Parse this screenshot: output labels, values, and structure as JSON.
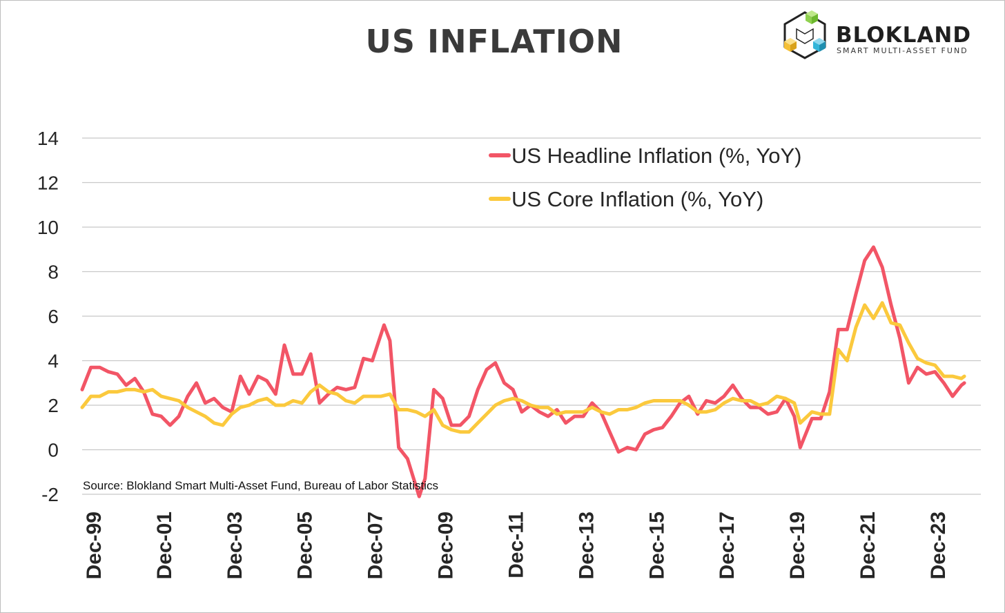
{
  "chart_data": {
    "type": "line",
    "title": "US INFLATION",
    "xlabel": "",
    "ylabel": "",
    "ylim": [
      -2,
      14
    ],
    "yticks": [
      -2,
      0,
      2,
      4,
      6,
      8,
      10,
      12,
      14
    ],
    "xtick_labels": [
      "Dec-99",
      "Dec-01",
      "Dec-03",
      "Dec-05",
      "Dec-07",
      "Dec-09",
      "Dec-11",
      "Dec-13",
      "Dec-15",
      "Dec-17",
      "Dec-19",
      "Dec-21",
      "Dec-23"
    ],
    "grid": "horizontal",
    "legend_position": "top-right",
    "source": "Source: Blokland Smart Multi-Asset Fund, Bureau of Labor Statistics",
    "series": [
      {
        "name": "US Headline Inflation (%, YoY)",
        "color": "#f25566",
        "points": [
          [
            "1999-12",
            2.7
          ],
          [
            "2000-03",
            3.7
          ],
          [
            "2000-06",
            3.7
          ],
          [
            "2000-09",
            3.5
          ],
          [
            "2000-12",
            3.4
          ],
          [
            "2001-03",
            2.9
          ],
          [
            "2001-06",
            3.2
          ],
          [
            "2001-09",
            2.6
          ],
          [
            "2001-12",
            1.6
          ],
          [
            "2002-03",
            1.5
          ],
          [
            "2002-06",
            1.1
          ],
          [
            "2002-09",
            1.5
          ],
          [
            "2002-12",
            2.4
          ],
          [
            "2003-03",
            3.0
          ],
          [
            "2003-06",
            2.1
          ],
          [
            "2003-09",
            2.3
          ],
          [
            "2003-12",
            1.9
          ],
          [
            "2004-03",
            1.7
          ],
          [
            "2004-06",
            3.3
          ],
          [
            "2004-09",
            2.5
          ],
          [
            "2004-12",
            3.3
          ],
          [
            "2005-03",
            3.1
          ],
          [
            "2005-06",
            2.5
          ],
          [
            "2005-09",
            4.7
          ],
          [
            "2005-12",
            3.4
          ],
          [
            "2006-03",
            3.4
          ],
          [
            "2006-06",
            4.3
          ],
          [
            "2006-09",
            2.1
          ],
          [
            "2006-12",
            2.5
          ],
          [
            "2007-03",
            2.8
          ],
          [
            "2007-06",
            2.7
          ],
          [
            "2007-09",
            2.8
          ],
          [
            "2007-12",
            4.1
          ],
          [
            "2008-03",
            4.0
          ],
          [
            "2008-07",
            5.6
          ],
          [
            "2008-09",
            4.9
          ],
          [
            "2008-12",
            0.1
          ],
          [
            "2009-03",
            -0.4
          ],
          [
            "2009-07",
            -2.1
          ],
          [
            "2009-09",
            -1.3
          ],
          [
            "2009-12",
            2.7
          ],
          [
            "2010-03",
            2.3
          ],
          [
            "2010-06",
            1.1
          ],
          [
            "2010-09",
            1.1
          ],
          [
            "2010-12",
            1.5
          ],
          [
            "2011-03",
            2.7
          ],
          [
            "2011-06",
            3.6
          ],
          [
            "2011-09",
            3.9
          ],
          [
            "2011-12",
            3.0
          ],
          [
            "2012-03",
            2.7
          ],
          [
            "2012-06",
            1.7
          ],
          [
            "2012-09",
            2.0
          ],
          [
            "2012-12",
            1.7
          ],
          [
            "2013-03",
            1.5
          ],
          [
            "2013-06",
            1.8
          ],
          [
            "2013-09",
            1.2
          ],
          [
            "2013-12",
            1.5
          ],
          [
            "2014-03",
            1.5
          ],
          [
            "2014-06",
            2.1
          ],
          [
            "2014-09",
            1.7
          ],
          [
            "2014-12",
            0.8
          ],
          [
            "2015-03",
            -0.1
          ],
          [
            "2015-06",
            0.1
          ],
          [
            "2015-09",
            0.0
          ],
          [
            "2015-12",
            0.7
          ],
          [
            "2016-03",
            0.9
          ],
          [
            "2016-06",
            1.0
          ],
          [
            "2016-09",
            1.5
          ],
          [
            "2016-12",
            2.1
          ],
          [
            "2017-03",
            2.4
          ],
          [
            "2017-06",
            1.6
          ],
          [
            "2017-09",
            2.2
          ],
          [
            "2017-12",
            2.1
          ],
          [
            "2018-03",
            2.4
          ],
          [
            "2018-06",
            2.9
          ],
          [
            "2018-09",
            2.3
          ],
          [
            "2018-12",
            1.9
          ],
          [
            "2019-03",
            1.9
          ],
          [
            "2019-06",
            1.6
          ],
          [
            "2019-09",
            1.7
          ],
          [
            "2019-12",
            2.3
          ],
          [
            "2020-03",
            1.5
          ],
          [
            "2020-05",
            0.1
          ],
          [
            "2020-09",
            1.4
          ],
          [
            "2020-12",
            1.4
          ],
          [
            "2021-03",
            2.6
          ],
          [
            "2021-06",
            5.4
          ],
          [
            "2021-09",
            5.4
          ],
          [
            "2021-12",
            7.0
          ],
          [
            "2022-03",
            8.5
          ],
          [
            "2022-06",
            9.1
          ],
          [
            "2022-09",
            8.2
          ],
          [
            "2022-12",
            6.5
          ],
          [
            "2023-03",
            5.0
          ],
          [
            "2023-06",
            3.0
          ],
          [
            "2023-09",
            3.7
          ],
          [
            "2023-12",
            3.4
          ],
          [
            "2024-03",
            3.5
          ],
          [
            "2024-06",
            3.0
          ],
          [
            "2024-09",
            2.4
          ],
          [
            "2024-12",
            2.9
          ],
          [
            "2025-01",
            3.0
          ]
        ]
      },
      {
        "name": "US Core Inflation (%, YoY)",
        "color": "#fbc93d",
        "points": [
          [
            "1999-12",
            1.9
          ],
          [
            "2000-03",
            2.4
          ],
          [
            "2000-06",
            2.4
          ],
          [
            "2000-09",
            2.6
          ],
          [
            "2000-12",
            2.6
          ],
          [
            "2001-03",
            2.7
          ],
          [
            "2001-06",
            2.7
          ],
          [
            "2001-09",
            2.6
          ],
          [
            "2001-12",
            2.7
          ],
          [
            "2002-03",
            2.4
          ],
          [
            "2002-06",
            2.3
          ],
          [
            "2002-09",
            2.2
          ],
          [
            "2002-12",
            1.9
          ],
          [
            "2003-03",
            1.7
          ],
          [
            "2003-06",
            1.5
          ],
          [
            "2003-09",
            1.2
          ],
          [
            "2003-12",
            1.1
          ],
          [
            "2004-03",
            1.6
          ],
          [
            "2004-06",
            1.9
          ],
          [
            "2004-09",
            2.0
          ],
          [
            "2004-12",
            2.2
          ],
          [
            "2005-03",
            2.3
          ],
          [
            "2005-06",
            2.0
          ],
          [
            "2005-09",
            2.0
          ],
          [
            "2005-12",
            2.2
          ],
          [
            "2006-03",
            2.1
          ],
          [
            "2006-06",
            2.6
          ],
          [
            "2006-09",
            2.9
          ],
          [
            "2006-12",
            2.6
          ],
          [
            "2007-03",
            2.5
          ],
          [
            "2007-06",
            2.2
          ],
          [
            "2007-09",
            2.1
          ],
          [
            "2007-12",
            2.4
          ],
          [
            "2008-03",
            2.4
          ],
          [
            "2008-06",
            2.4
          ],
          [
            "2008-09",
            2.5
          ],
          [
            "2008-12",
            1.8
          ],
          [
            "2009-03",
            1.8
          ],
          [
            "2009-06",
            1.7
          ],
          [
            "2009-09",
            1.5
          ],
          [
            "2009-12",
            1.8
          ],
          [
            "2010-03",
            1.1
          ],
          [
            "2010-06",
            0.9
          ],
          [
            "2010-09",
            0.8
          ],
          [
            "2010-12",
            0.8
          ],
          [
            "2011-03",
            1.2
          ],
          [
            "2011-06",
            1.6
          ],
          [
            "2011-09",
            2.0
          ],
          [
            "2011-12",
            2.2
          ],
          [
            "2012-03",
            2.3
          ],
          [
            "2012-06",
            2.2
          ],
          [
            "2012-09",
            2.0
          ],
          [
            "2012-12",
            1.9
          ],
          [
            "2013-03",
            1.9
          ],
          [
            "2013-06",
            1.6
          ],
          [
            "2013-09",
            1.7
          ],
          [
            "2013-12",
            1.7
          ],
          [
            "2014-03",
            1.7
          ],
          [
            "2014-06",
            1.9
          ],
          [
            "2014-09",
            1.7
          ],
          [
            "2014-12",
            1.6
          ],
          [
            "2015-03",
            1.8
          ],
          [
            "2015-06",
            1.8
          ],
          [
            "2015-09",
            1.9
          ],
          [
            "2015-12",
            2.1
          ],
          [
            "2016-03",
            2.2
          ],
          [
            "2016-06",
            2.2
          ],
          [
            "2016-09",
            2.2
          ],
          [
            "2016-12",
            2.2
          ],
          [
            "2017-03",
            2.0
          ],
          [
            "2017-06",
            1.7
          ],
          [
            "2017-09",
            1.7
          ],
          [
            "2017-12",
            1.8
          ],
          [
            "2018-03",
            2.1
          ],
          [
            "2018-06",
            2.3
          ],
          [
            "2018-09",
            2.2
          ],
          [
            "2018-12",
            2.2
          ],
          [
            "2019-03",
            2.0
          ],
          [
            "2019-06",
            2.1
          ],
          [
            "2019-09",
            2.4
          ],
          [
            "2019-12",
            2.3
          ],
          [
            "2020-03",
            2.1
          ],
          [
            "2020-05",
            1.2
          ],
          [
            "2020-09",
            1.7
          ],
          [
            "2020-12",
            1.6
          ],
          [
            "2021-03",
            1.6
          ],
          [
            "2021-06",
            4.5
          ],
          [
            "2021-09",
            4.0
          ],
          [
            "2021-12",
            5.5
          ],
          [
            "2022-03",
            6.5
          ],
          [
            "2022-06",
            5.9
          ],
          [
            "2022-09",
            6.6
          ],
          [
            "2022-12",
            5.7
          ],
          [
            "2023-03",
            5.6
          ],
          [
            "2023-06",
            4.8
          ],
          [
            "2023-09",
            4.1
          ],
          [
            "2023-12",
            3.9
          ],
          [
            "2024-03",
            3.8
          ],
          [
            "2024-06",
            3.3
          ],
          [
            "2024-09",
            3.3
          ],
          [
            "2024-12",
            3.2
          ],
          [
            "2025-01",
            3.3
          ]
        ]
      }
    ]
  },
  "logo": {
    "name": "BLOKLAND",
    "tagline": "SMART MULTI-ASSET FUND",
    "colors": {
      "green": "#8fd14f",
      "yellow": "#f5c037",
      "blue": "#33b5d9",
      "outline": "#222222"
    }
  }
}
